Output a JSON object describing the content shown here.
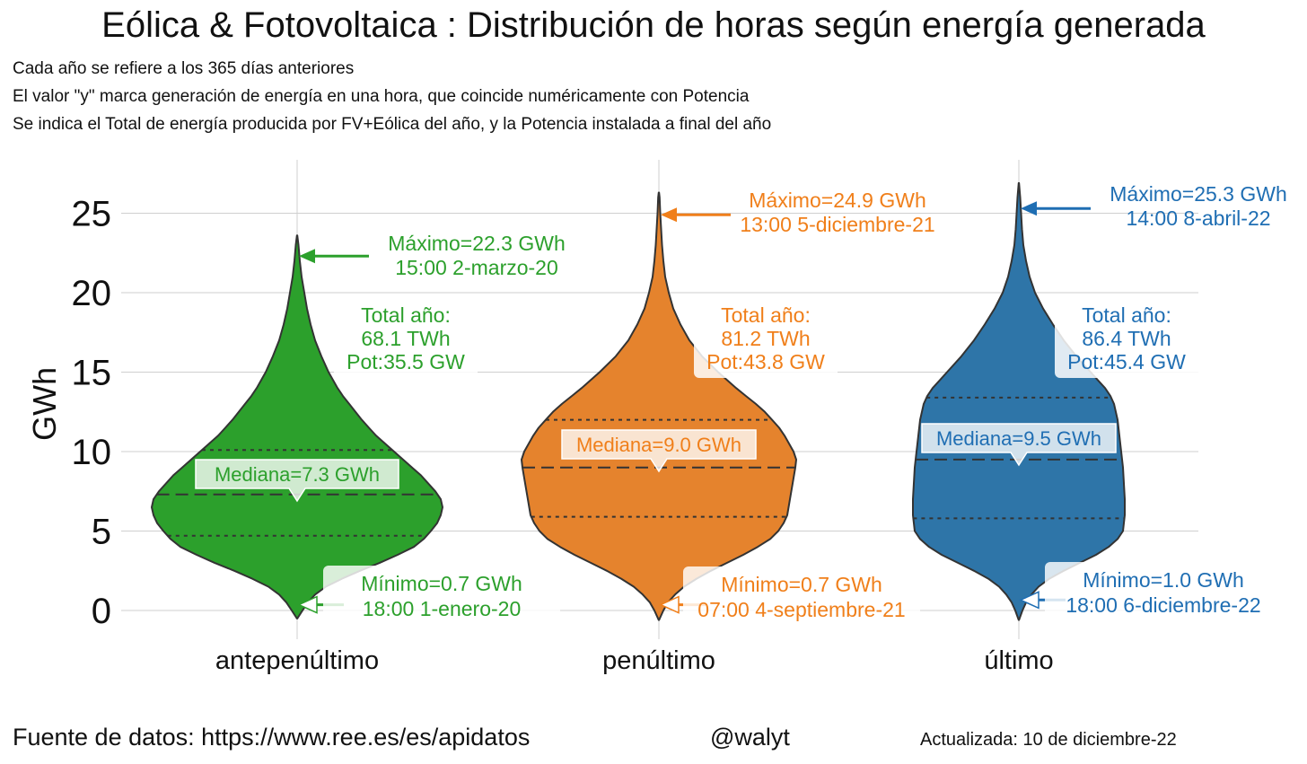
{
  "header": {
    "title": "Eólica & Fotovoltaica : Distribución de horas según energía generada",
    "subtitles": [
      "Cada año se refiere a los 365 días anteriores",
      "El valor \"y\" marca generación de energía en una hora, que coincide numéricamente con Potencia",
      "Se indica el Total de energía producida por FV+Eólica del año, y la Potencia instalada a final del año"
    ]
  },
  "footer": {
    "source": "Fuente de datos: https://www.ree.es/es/apidatos",
    "handle": "@walyt",
    "updated": "Actualizada: 10 de diciembre-22"
  },
  "chart_data": {
    "type": "violin",
    "ylabel": "GWh",
    "ylim": [
      -1,
      27.5
    ],
    "yticks": [
      0,
      5,
      10,
      15,
      20,
      25
    ],
    "ytick_labels": [
      "0",
      "5",
      "10",
      "15",
      "20",
      "25"
    ],
    "grid": true,
    "categories": [
      "antepenúltimo",
      "penúltimo",
      "último"
    ],
    "series": [
      {
        "name": "antepenúltimo",
        "color": "#2ca02c",
        "label_color": "#2ca02c",
        "median": 7.3,
        "q1": 4.7,
        "q3": 10.1,
        "min": 0.7,
        "max": 22.3,
        "kde_min": -0.5,
        "kde_max": 23.6,
        "max_label": [
          "Máximo=22.3 GWh",
          "15:00 2-marzo-20"
        ],
        "min_label": [
          "Mínimo=0.7 GWh",
          "18:00 1-enero-20"
        ],
        "median_label": "Mediana=7.3 GWh",
        "total_label": [
          "Total año:",
          "68.1 TWh",
          "Pot:35.5 GW"
        ],
        "density": [
          [
            -0.5,
            0.2
          ],
          [
            0,
            6
          ],
          [
            0.5,
            12
          ],
          [
            1,
            20
          ],
          [
            1.5,
            32
          ],
          [
            2,
            50
          ],
          [
            2.5,
            70
          ],
          [
            3,
            92
          ],
          [
            3.5,
            112
          ],
          [
            4,
            130
          ],
          [
            4.5,
            141
          ],
          [
            5,
            149
          ],
          [
            5.5,
            156
          ],
          [
            6,
            160
          ],
          [
            6.5,
            162
          ],
          [
            7,
            160
          ],
          [
            7.5,
            154
          ],
          [
            8,
            146
          ],
          [
            8.5,
            138
          ],
          [
            9,
            128
          ],
          [
            9.5,
            118
          ],
          [
            10,
            108
          ],
          [
            10.5,
            98
          ],
          [
            11,
            88
          ],
          [
            11.5,
            80
          ],
          [
            12,
            72
          ],
          [
            12.5,
            65
          ],
          [
            13,
            58
          ],
          [
            13.5,
            51
          ],
          [
            14,
            45
          ],
          [
            15,
            35
          ],
          [
            16,
            27
          ],
          [
            17,
            20
          ],
          [
            18,
            15
          ],
          [
            19,
            11
          ],
          [
            20,
            8
          ],
          [
            21,
            5
          ],
          [
            22,
            3
          ],
          [
            23,
            1.5
          ],
          [
            23.6,
            0.2
          ]
        ]
      },
      {
        "name": "penúltimo",
        "color": "#e5832d",
        "label_color": "#f07f1a",
        "median": 9.0,
        "q1": 5.9,
        "q3": 12.0,
        "min": 0.7,
        "max": 24.9,
        "kde_min": -0.6,
        "kde_max": 26.3,
        "max_label": [
          "Máximo=24.9 GWh",
          "13:00 5-diciembre-21"
        ],
        "min_label": [
          "Mínimo=0.7 GWh",
          "07:00 4-septiembre-21"
        ],
        "median_label": "Mediana=9.0 GWh",
        "total_label": [
          "Total año:",
          "81.2 TWh",
          "Pot:43.8 GW"
        ],
        "density": [
          [
            -0.6,
            0.2
          ],
          [
            0,
            5
          ],
          [
            0.5,
            10
          ],
          [
            1,
            18
          ],
          [
            1.5,
            28
          ],
          [
            2,
            42
          ],
          [
            2.5,
            58
          ],
          [
            3,
            76
          ],
          [
            3.5,
            94
          ],
          [
            4,
            110
          ],
          [
            4.5,
            124
          ],
          [
            5,
            133
          ],
          [
            5.5,
            139
          ],
          [
            6,
            143
          ],
          [
            7,
            146
          ],
          [
            8,
            149
          ],
          [
            9,
            152
          ],
          [
            9.5,
            153
          ],
          [
            10,
            150
          ],
          [
            10.5,
            145
          ],
          [
            11,
            140
          ],
          [
            11.5,
            134
          ],
          [
            12,
            126
          ],
          [
            12.5,
            118
          ],
          [
            13,
            108
          ],
          [
            13.5,
            97
          ],
          [
            14,
            86
          ],
          [
            15,
            66
          ],
          [
            16,
            48
          ],
          [
            17,
            34
          ],
          [
            18,
            24
          ],
          [
            19,
            16
          ],
          [
            20,
            11
          ],
          [
            21,
            7
          ],
          [
            22,
            5
          ],
          [
            23,
            3.5
          ],
          [
            24,
            2.5
          ],
          [
            25,
            1.5
          ],
          [
            26,
            0.8
          ],
          [
            26.3,
            0.2
          ]
        ]
      },
      {
        "name": "último",
        "color": "#2e75a8",
        "label_color": "#1f6eb3",
        "median": 9.5,
        "q1": 5.8,
        "q3": 13.4,
        "min": 1.0,
        "max": 25.3,
        "kde_min": -0.6,
        "kde_max": 26.9,
        "max_label": [
          "Máximo=25.3 GWh",
          "14:00 8-abril-22"
        ],
        "min_label": [
          "Mínimo=1.0 GWh",
          "18:00 6-diciembre-22"
        ],
        "median_label": "Mediana=9.5 GWh",
        "total_label": [
          "Total año:",
          "86.4 TWh",
          "Pot:45.4 GW"
        ],
        "density": [
          [
            -0.6,
            0.2
          ],
          [
            0,
            4
          ],
          [
            0.5,
            8
          ],
          [
            1,
            14
          ],
          [
            1.5,
            22
          ],
          [
            2,
            34
          ],
          [
            2.5,
            50
          ],
          [
            3,
            68
          ],
          [
            3.5,
            86
          ],
          [
            4,
            100
          ],
          [
            4.5,
            110
          ],
          [
            5,
            116
          ],
          [
            6,
            118
          ],
          [
            7,
            118
          ],
          [
            8,
            117
          ],
          [
            9,
            116
          ],
          [
            10,
            114
          ],
          [
            11,
            112
          ],
          [
            12,
            110
          ],
          [
            13,
            106
          ],
          [
            13.5,
            102
          ],
          [
            14,
            96
          ],
          [
            14.5,
            88
          ],
          [
            15,
            80
          ],
          [
            16,
            64
          ],
          [
            17,
            50
          ],
          [
            18,
            38
          ],
          [
            19,
            27
          ],
          [
            20,
            18
          ],
          [
            21,
            12
          ],
          [
            22,
            8
          ],
          [
            23,
            5
          ],
          [
            24,
            3.5
          ],
          [
            25,
            2.5
          ],
          [
            26,
            1.5
          ],
          [
            26.9,
            0.2
          ]
        ]
      }
    ]
  }
}
